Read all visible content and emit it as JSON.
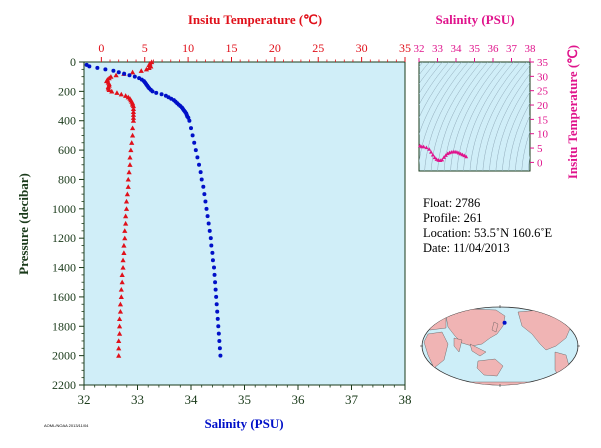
{
  "chart_data": [
    {
      "type": "scatter",
      "title": "",
      "xlabel_top": "Insitu Temperature (℃)",
      "xlabel_bottom": "Salinity (PSU)",
      "ylabel": "Pressure (decibar)",
      "temperature_axis": {
        "range": [
          -2,
          35
        ],
        "ticks": [
          0,
          5,
          10,
          15,
          20,
          25,
          30,
          35
        ],
        "color": "#e0101a"
      },
      "salinity_axis": {
        "range": [
          32,
          38
        ],
        "ticks": [
          32,
          33,
          34,
          35,
          36,
          37,
          38
        ],
        "color": "#0010c8"
      },
      "pressure_axis": {
        "range": [
          0,
          2200
        ],
        "ticks": [
          0,
          200,
          400,
          600,
          800,
          1000,
          1200,
          1400,
          1600,
          1800,
          2000,
          2200
        ],
        "inverted": true
      },
      "grid": false,
      "background": "#d0eef8",
      "series": [
        {
          "variable": "temperature",
          "marker": "triangle",
          "color": "#e0101a",
          "points": [
            [
              5.8,
              0
            ],
            [
              5.6,
              10
            ],
            [
              5.5,
              20
            ],
            [
              5.7,
              30
            ],
            [
              5.5,
              40
            ],
            [
              5.2,
              50
            ],
            [
              4.6,
              60
            ],
            [
              3.6,
              70
            ],
            [
              2.6,
              80
            ],
            [
              1.7,
              90
            ],
            [
              1.1,
              100
            ],
            [
              0.9,
              110
            ],
            [
              0.7,
              120
            ],
            [
              0.6,
              130
            ],
            [
              0.8,
              140
            ],
            [
              0.9,
              150
            ],
            [
              0.9,
              160
            ],
            [
              0.8,
              170
            ],
            [
              0.8,
              180
            ],
            [
              0.9,
              190
            ],
            [
              1.2,
              200
            ],
            [
              1.8,
              210
            ],
            [
              2.3,
              220
            ],
            [
              2.8,
              230
            ],
            [
              3.1,
              240
            ],
            [
              3.3,
              250
            ],
            [
              3.4,
              260
            ],
            [
              3.5,
              270
            ],
            [
              3.6,
              280
            ],
            [
              3.6,
              290
            ],
            [
              3.7,
              300
            ],
            [
              3.7,
              320
            ],
            [
              3.7,
              340
            ],
            [
              3.7,
              360
            ],
            [
              3.7,
              380
            ],
            [
              3.7,
              400
            ],
            [
              3.6,
              450
            ],
            [
              3.6,
              500
            ],
            [
              3.5,
              550
            ],
            [
              3.4,
              600
            ],
            [
              3.3,
              650
            ],
            [
              3.3,
              700
            ],
            [
              3.2,
              750
            ],
            [
              3.1,
              800
            ],
            [
              3.1,
              850
            ],
            [
              3.0,
              900
            ],
            [
              2.9,
              950
            ],
            [
              2.9,
              1000
            ],
            [
              2.8,
              1050
            ],
            [
              2.8,
              1100
            ],
            [
              2.7,
              1150
            ],
            [
              2.7,
              1200
            ],
            [
              2.6,
              1250
            ],
            [
              2.6,
              1300
            ],
            [
              2.5,
              1350
            ],
            [
              2.5,
              1400
            ],
            [
              2.4,
              1450
            ],
            [
              2.4,
              1500
            ],
            [
              2.3,
              1550
            ],
            [
              2.3,
              1600
            ],
            [
              2.2,
              1650
            ],
            [
              2.2,
              1700
            ],
            [
              2.1,
              1750
            ],
            [
              2.1,
              1800
            ],
            [
              2.1,
              1850
            ],
            [
              2.0,
              1900
            ],
            [
              2.0,
              1950
            ],
            [
              2.0,
              2000
            ]
          ]
        },
        {
          "variable": "salinity",
          "marker": "circle",
          "color": "#0010c8",
          "points": [
            [
              32.05,
              20
            ],
            [
              32.1,
              30
            ],
            [
              32.25,
              40
            ],
            [
              32.4,
              50
            ],
            [
              32.55,
              60
            ],
            [
              32.65,
              70
            ],
            [
              32.75,
              80
            ],
            [
              32.85,
              90
            ],
            [
              32.95,
              100
            ],
            [
              33.03,
              110
            ],
            [
              33.08,
              120
            ],
            [
              33.12,
              130
            ],
            [
              33.14,
              140
            ],
            [
              33.16,
              150
            ],
            [
              33.18,
              160
            ],
            [
              33.2,
              170
            ],
            [
              33.22,
              180
            ],
            [
              33.25,
              190
            ],
            [
              33.28,
              200
            ],
            [
              33.35,
              210
            ],
            [
              33.45,
              220
            ],
            [
              33.53,
              230
            ],
            [
              33.58,
              240
            ],
            [
              33.63,
              250
            ],
            [
              33.68,
              260
            ],
            [
              33.71,
              270
            ],
            [
              33.74,
              280
            ],
            [
              33.77,
              290
            ],
            [
              33.8,
              300
            ],
            [
              33.83,
              310
            ],
            [
              33.85,
              320
            ],
            [
              33.87,
              330
            ],
            [
              33.89,
              340
            ],
            [
              33.91,
              350
            ],
            [
              33.92,
              360
            ],
            [
              33.93,
              370
            ],
            [
              33.95,
              380
            ],
            [
              33.97,
              400
            ],
            [
              34.0,
              450
            ],
            [
              34.03,
              500
            ],
            [
              34.06,
              550
            ],
            [
              34.09,
              600
            ],
            [
              34.12,
              650
            ],
            [
              34.15,
              700
            ],
            [
              34.18,
              750
            ],
            [
              34.2,
              800
            ],
            [
              34.23,
              850
            ],
            [
              34.25,
              900
            ],
            [
              34.27,
              950
            ],
            [
              34.29,
              1000
            ],
            [
              34.31,
              1050
            ],
            [
              34.33,
              1100
            ],
            [
              34.35,
              1150
            ],
            [
              34.37,
              1200
            ],
            [
              34.38,
              1250
            ],
            [
              34.4,
              1300
            ],
            [
              34.41,
              1350
            ],
            [
              34.43,
              1400
            ],
            [
              34.44,
              1450
            ],
            [
              34.45,
              1500
            ],
            [
              34.46,
              1550
            ],
            [
              34.47,
              1600
            ],
            [
              34.48,
              1650
            ],
            [
              34.49,
              1700
            ],
            [
              34.5,
              1750
            ],
            [
              34.51,
              1800
            ],
            [
              34.52,
              1850
            ],
            [
              34.53,
              1900
            ],
            [
              34.54,
              1950
            ],
            [
              34.55,
              2000
            ]
          ]
        }
      ]
    },
    {
      "type": "scatter",
      "title": "Salinity (PSU)",
      "xlabel": "Salinity (PSU)",
      "ylabel": "Insitu Temperature (℃)",
      "x_axis": {
        "range": [
          32,
          38
        ],
        "ticks": [
          32,
          33,
          34,
          35,
          36,
          37,
          38
        ]
      },
      "y_axis": {
        "range": [
          -3,
          35
        ],
        "ticks": [
          0,
          5,
          10,
          15,
          20,
          25,
          30,
          35
        ]
      },
      "color": "#e0148c",
      "background": "#d0eef8",
      "density_contours": true,
      "points": [
        [
          32.05,
          5.8
        ],
        [
          32.15,
          5.5
        ],
        [
          32.25,
          5.5
        ],
        [
          32.4,
          5.2
        ],
        [
          32.55,
          4.6
        ],
        [
          32.65,
          3.6
        ],
        [
          32.75,
          2.6
        ],
        [
          32.85,
          1.7
        ],
        [
          32.95,
          1.1
        ],
        [
          33.05,
          0.8
        ],
        [
          33.15,
          0.7
        ],
        [
          33.25,
          0.9
        ],
        [
          33.35,
          1.8
        ],
        [
          33.45,
          2.5
        ],
        [
          33.55,
          3.1
        ],
        [
          33.65,
          3.4
        ],
        [
          33.75,
          3.6
        ],
        [
          33.85,
          3.7
        ],
        [
          33.95,
          3.7
        ],
        [
          34.05,
          3.6
        ],
        [
          34.15,
          3.3
        ],
        [
          34.25,
          3.0
        ],
        [
          34.35,
          2.7
        ],
        [
          34.45,
          2.4
        ],
        [
          34.55,
          2.0
        ]
      ]
    }
  ],
  "float_info": {
    "float": "Float:  2786",
    "profile": "Profile:  261",
    "location": "Location:  53.5˚N  160.6˚E",
    "date": "Date:  11/04/2013"
  },
  "map": {
    "land_color": "#f0b4b4",
    "ocean_color": "#cdeef8",
    "marker_color": "#0010c8",
    "location": [
      53.5,
      160.6
    ]
  },
  "footer_text": "AOML/NOAA 2013/11/04"
}
